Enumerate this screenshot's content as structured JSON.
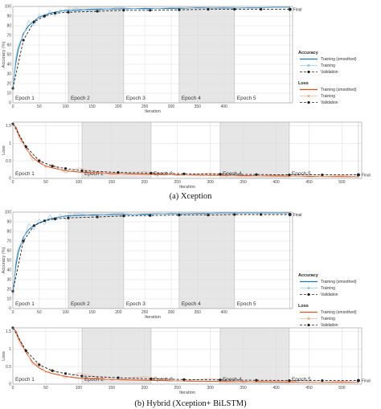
{
  "captions": {
    "a": "(a) Xception",
    "b": "(b) Hybrid (Xception+ BiLSTM)"
  },
  "chart_data": [
    {
      "type": "line",
      "panel": "a-accuracy",
      "ylabel": "Accuracy (%)",
      "xlabel": "Iteration",
      "xlim": [
        0,
        530
      ],
      "ylim": [
        0,
        100
      ],
      "xticks": [
        0,
        50,
        100,
        150,
        200,
        250,
        300,
        350,
        400
      ],
      "yticks": [
        0,
        10,
        20,
        30,
        40,
        50,
        60,
        70,
        80,
        90,
        100
      ],
      "epochs": [
        {
          "label": "Epoch 1",
          "start": 0,
          "end": 105
        },
        {
          "label": "Epoch 2",
          "start": 105,
          "end": 210
        },
        {
          "label": "Epoch 3",
          "start": 210,
          "end": 315
        },
        {
          "label": "Epoch 4",
          "start": 315,
          "end": 420
        },
        {
          "label": "Epoch 5",
          "start": 420,
          "end": 525
        }
      ],
      "final_label": "Final",
      "series": [
        {
          "name": "Training (smoothed)",
          "color": "#1f77b4",
          "x": [
            0,
            5,
            10,
            20,
            30,
            40,
            50,
            60,
            70,
            80,
            90,
            100,
            120,
            150,
            200,
            250,
            300,
            350,
            400,
            450,
            500,
            525
          ],
          "y": [
            15,
            40,
            55,
            72,
            80,
            85,
            89,
            91,
            93,
            94,
            95,
            96,
            96,
            97,
            97.5,
            98,
            98,
            98.5,
            98.5,
            98.5,
            99,
            99
          ]
        },
        {
          "name": "Training",
          "color": "#9cc9e8",
          "x": [
            0,
            5,
            10,
            20,
            30,
            40,
            50,
            60,
            70,
            80,
            90,
            100,
            120,
            150,
            200,
            250,
            300,
            350,
            400,
            450,
            500,
            525
          ],
          "y": [
            12,
            45,
            60,
            70,
            85,
            80,
            92,
            88,
            96,
            90,
            97,
            94,
            98,
            95,
            99,
            97,
            99,
            98,
            99,
            98,
            99,
            99
          ]
        },
        {
          "name": "Validation",
          "color": "#222222",
          "dashed": true,
          "markers": true,
          "x": [
            0,
            20,
            40,
            60,
            80,
            105,
            160,
            210,
            260,
            315,
            370,
            420,
            470,
            525
          ],
          "y": [
            15,
            65,
            84,
            90,
            93,
            94,
            95,
            96,
            96,
            96.5,
            97,
            97,
            97,
            97
          ]
        }
      ]
    },
    {
      "type": "line",
      "panel": "a-loss",
      "ylabel": "Loss",
      "xlabel": "Iteration",
      "xlim": [
        0,
        530
      ],
      "ylim": [
        0,
        1.6
      ],
      "xticks": [
        0,
        50,
        100,
        150,
        200,
        250,
        300,
        350,
        400,
        450,
        500
      ],
      "yticks": [
        0,
        0.5,
        1,
        1.5
      ],
      "epochs": [
        {
          "label": "Epoch 1",
          "start": 0,
          "end": 105
        },
        {
          "label": "Epoch 2",
          "start": 105,
          "end": 210
        },
        {
          "label": "Epoch 3",
          "start": 210,
          "end": 315
        },
        {
          "label": "Epoch 4",
          "start": 315,
          "end": 420
        },
        {
          "label": "Epoch 5",
          "start": 420,
          "end": 525
        }
      ],
      "final_label": "Final",
      "series": [
        {
          "name": "Training (smoothed)",
          "color": "#d9541e",
          "x": [
            0,
            5,
            10,
            20,
            30,
            40,
            50,
            60,
            80,
            100,
            150,
            200,
            250,
            300,
            350,
            400,
            450,
            500,
            525
          ],
          "y": [
            1.55,
            1.45,
            1.2,
            0.85,
            0.6,
            0.45,
            0.35,
            0.3,
            0.22,
            0.18,
            0.14,
            0.12,
            0.1,
            0.09,
            0.08,
            0.07,
            0.06,
            0.05,
            0.05
          ]
        },
        {
          "name": "Training",
          "color": "#f2b49a",
          "x": [
            0,
            5,
            10,
            20,
            30,
            40,
            50,
            60,
            80,
            100,
            150,
            200,
            250,
            300,
            350,
            400,
            450,
            500,
            525
          ],
          "y": [
            1.6,
            1.4,
            1.1,
            0.9,
            0.5,
            0.55,
            0.3,
            0.4,
            0.15,
            0.3,
            0.1,
            0.2,
            0.08,
            0.15,
            0.05,
            0.1,
            0.04,
            0.08,
            0.05
          ]
        },
        {
          "name": "Validation",
          "color": "#222222",
          "dashed": true,
          "markers": true,
          "x": [
            0,
            20,
            40,
            60,
            80,
            105,
            160,
            210,
            260,
            315,
            370,
            420,
            470,
            525
          ],
          "y": [
            1.55,
            0.9,
            0.5,
            0.35,
            0.28,
            0.22,
            0.17,
            0.15,
            0.13,
            0.12,
            0.11,
            0.1,
            0.1,
            0.1
          ]
        }
      ]
    },
    {
      "type": "line",
      "panel": "b-accuracy",
      "ylabel": "Accuracy (%)",
      "xlabel": "Iteration",
      "xlim": [
        0,
        530
      ],
      "ylim": [
        0,
        100
      ],
      "xticks": [
        0,
        50,
        100,
        150,
        200,
        250,
        300,
        350,
        400
      ],
      "yticks": [
        0,
        10,
        20,
        30,
        40,
        50,
        60,
        70,
        80,
        90,
        100
      ],
      "epochs": [
        {
          "label": "Epoch 1",
          "start": 0,
          "end": 105
        },
        {
          "label": "Epoch 2",
          "start": 105,
          "end": 210
        },
        {
          "label": "Epoch 3",
          "start": 210,
          "end": 315
        },
        {
          "label": "Epoch 4",
          "start": 315,
          "end": 420
        },
        {
          "label": "Epoch 5",
          "start": 420,
          "end": 525
        }
      ],
      "final_label": "Final",
      "series": [
        {
          "name": "Training (smoothed)",
          "color": "#1f77b4",
          "x": [
            0,
            5,
            10,
            20,
            30,
            40,
            50,
            60,
            70,
            80,
            90,
            100,
            120,
            150,
            200,
            250,
            300,
            350,
            400,
            450,
            500,
            525
          ],
          "y": [
            15,
            42,
            58,
            74,
            82,
            86,
            89,
            91,
            93,
            94,
            95,
            96,
            96.5,
            97,
            97.5,
            98,
            98.5,
            98.5,
            99,
            99,
            99,
            99
          ]
        },
        {
          "name": "Training",
          "color": "#9cc9e8",
          "x": [
            0,
            5,
            10,
            20,
            30,
            40,
            50,
            60,
            70,
            80,
            90,
            100,
            120,
            150,
            200,
            250,
            300,
            350,
            400,
            450,
            500,
            525
          ],
          "y": [
            10,
            48,
            62,
            72,
            88,
            82,
            93,
            87,
            97,
            91,
            98,
            92,
            99,
            96,
            99,
            97,
            99,
            98,
            99,
            99,
            99,
            99
          ]
        },
        {
          "name": "Validation",
          "color": "#222222",
          "dashed": true,
          "markers": true,
          "x": [
            0,
            20,
            40,
            60,
            80,
            105,
            160,
            210,
            260,
            315,
            370,
            420,
            470,
            525
          ],
          "y": [
            18,
            70,
            86,
            91,
            93,
            94,
            95,
            96,
            96.5,
            97,
            97,
            97.5,
            97.5,
            97.5
          ]
        }
      ]
    },
    {
      "type": "line",
      "panel": "b-loss",
      "ylabel": "Loss",
      "xlabel": "Iteration",
      "xlim": [
        0,
        530
      ],
      "ylim": [
        0,
        1.6
      ],
      "xticks": [
        0,
        50,
        100,
        150,
        200,
        250,
        300,
        350,
        400,
        450,
        500
      ],
      "yticks": [
        0,
        0.5,
        1,
        1.5
      ],
      "epochs": [
        {
          "label": "Epoch 1",
          "start": 0,
          "end": 105
        },
        {
          "label": "Epoch 2",
          "start": 105,
          "end": 210
        },
        {
          "label": "Epoch 3",
          "start": 210,
          "end": 315
        },
        {
          "label": "Epoch 4",
          "start": 315,
          "end": 420
        },
        {
          "label": "Epoch 5",
          "start": 420,
          "end": 525
        }
      ],
      "final_label": "Final",
      "series": [
        {
          "name": "Training (smoothed)",
          "color": "#d9541e",
          "x": [
            0,
            5,
            10,
            20,
            30,
            40,
            50,
            60,
            80,
            100,
            150,
            200,
            250,
            300,
            350,
            400,
            450,
            500,
            525
          ],
          "y": [
            1.6,
            1.5,
            1.25,
            0.9,
            0.62,
            0.46,
            0.36,
            0.3,
            0.22,
            0.17,
            0.13,
            0.11,
            0.09,
            0.08,
            0.07,
            0.06,
            0.05,
            0.05,
            0.05
          ]
        },
        {
          "name": "Training",
          "color": "#f2b49a",
          "x": [
            0,
            5,
            10,
            20,
            30,
            40,
            50,
            60,
            80,
            100,
            150,
            200,
            250,
            300,
            350,
            400,
            450,
            500,
            525
          ],
          "y": [
            1.62,
            1.45,
            1.15,
            0.95,
            0.55,
            0.6,
            0.32,
            0.42,
            0.16,
            0.32,
            0.11,
            0.22,
            0.08,
            0.16,
            0.05,
            0.12,
            0.04,
            0.08,
            0.05
          ]
        },
        {
          "name": "Validation",
          "color": "#222222",
          "dashed": true,
          "markers": true,
          "x": [
            0,
            20,
            40,
            60,
            80,
            105,
            160,
            210,
            260,
            315,
            370,
            420,
            470,
            525
          ],
          "y": [
            1.6,
            0.95,
            0.55,
            0.38,
            0.3,
            0.23,
            0.18,
            0.15,
            0.13,
            0.12,
            0.11,
            0.1,
            0.1,
            0.1
          ]
        }
      ]
    }
  ],
  "legend": {
    "accuracy_title": "Accuracy",
    "loss_title": "Loss",
    "accuracy_items": [
      "Training (smoothed)",
      "Training",
      "Validation"
    ],
    "loss_items": [
      "Training (smoothed)",
      "Training",
      "Validation"
    ]
  }
}
